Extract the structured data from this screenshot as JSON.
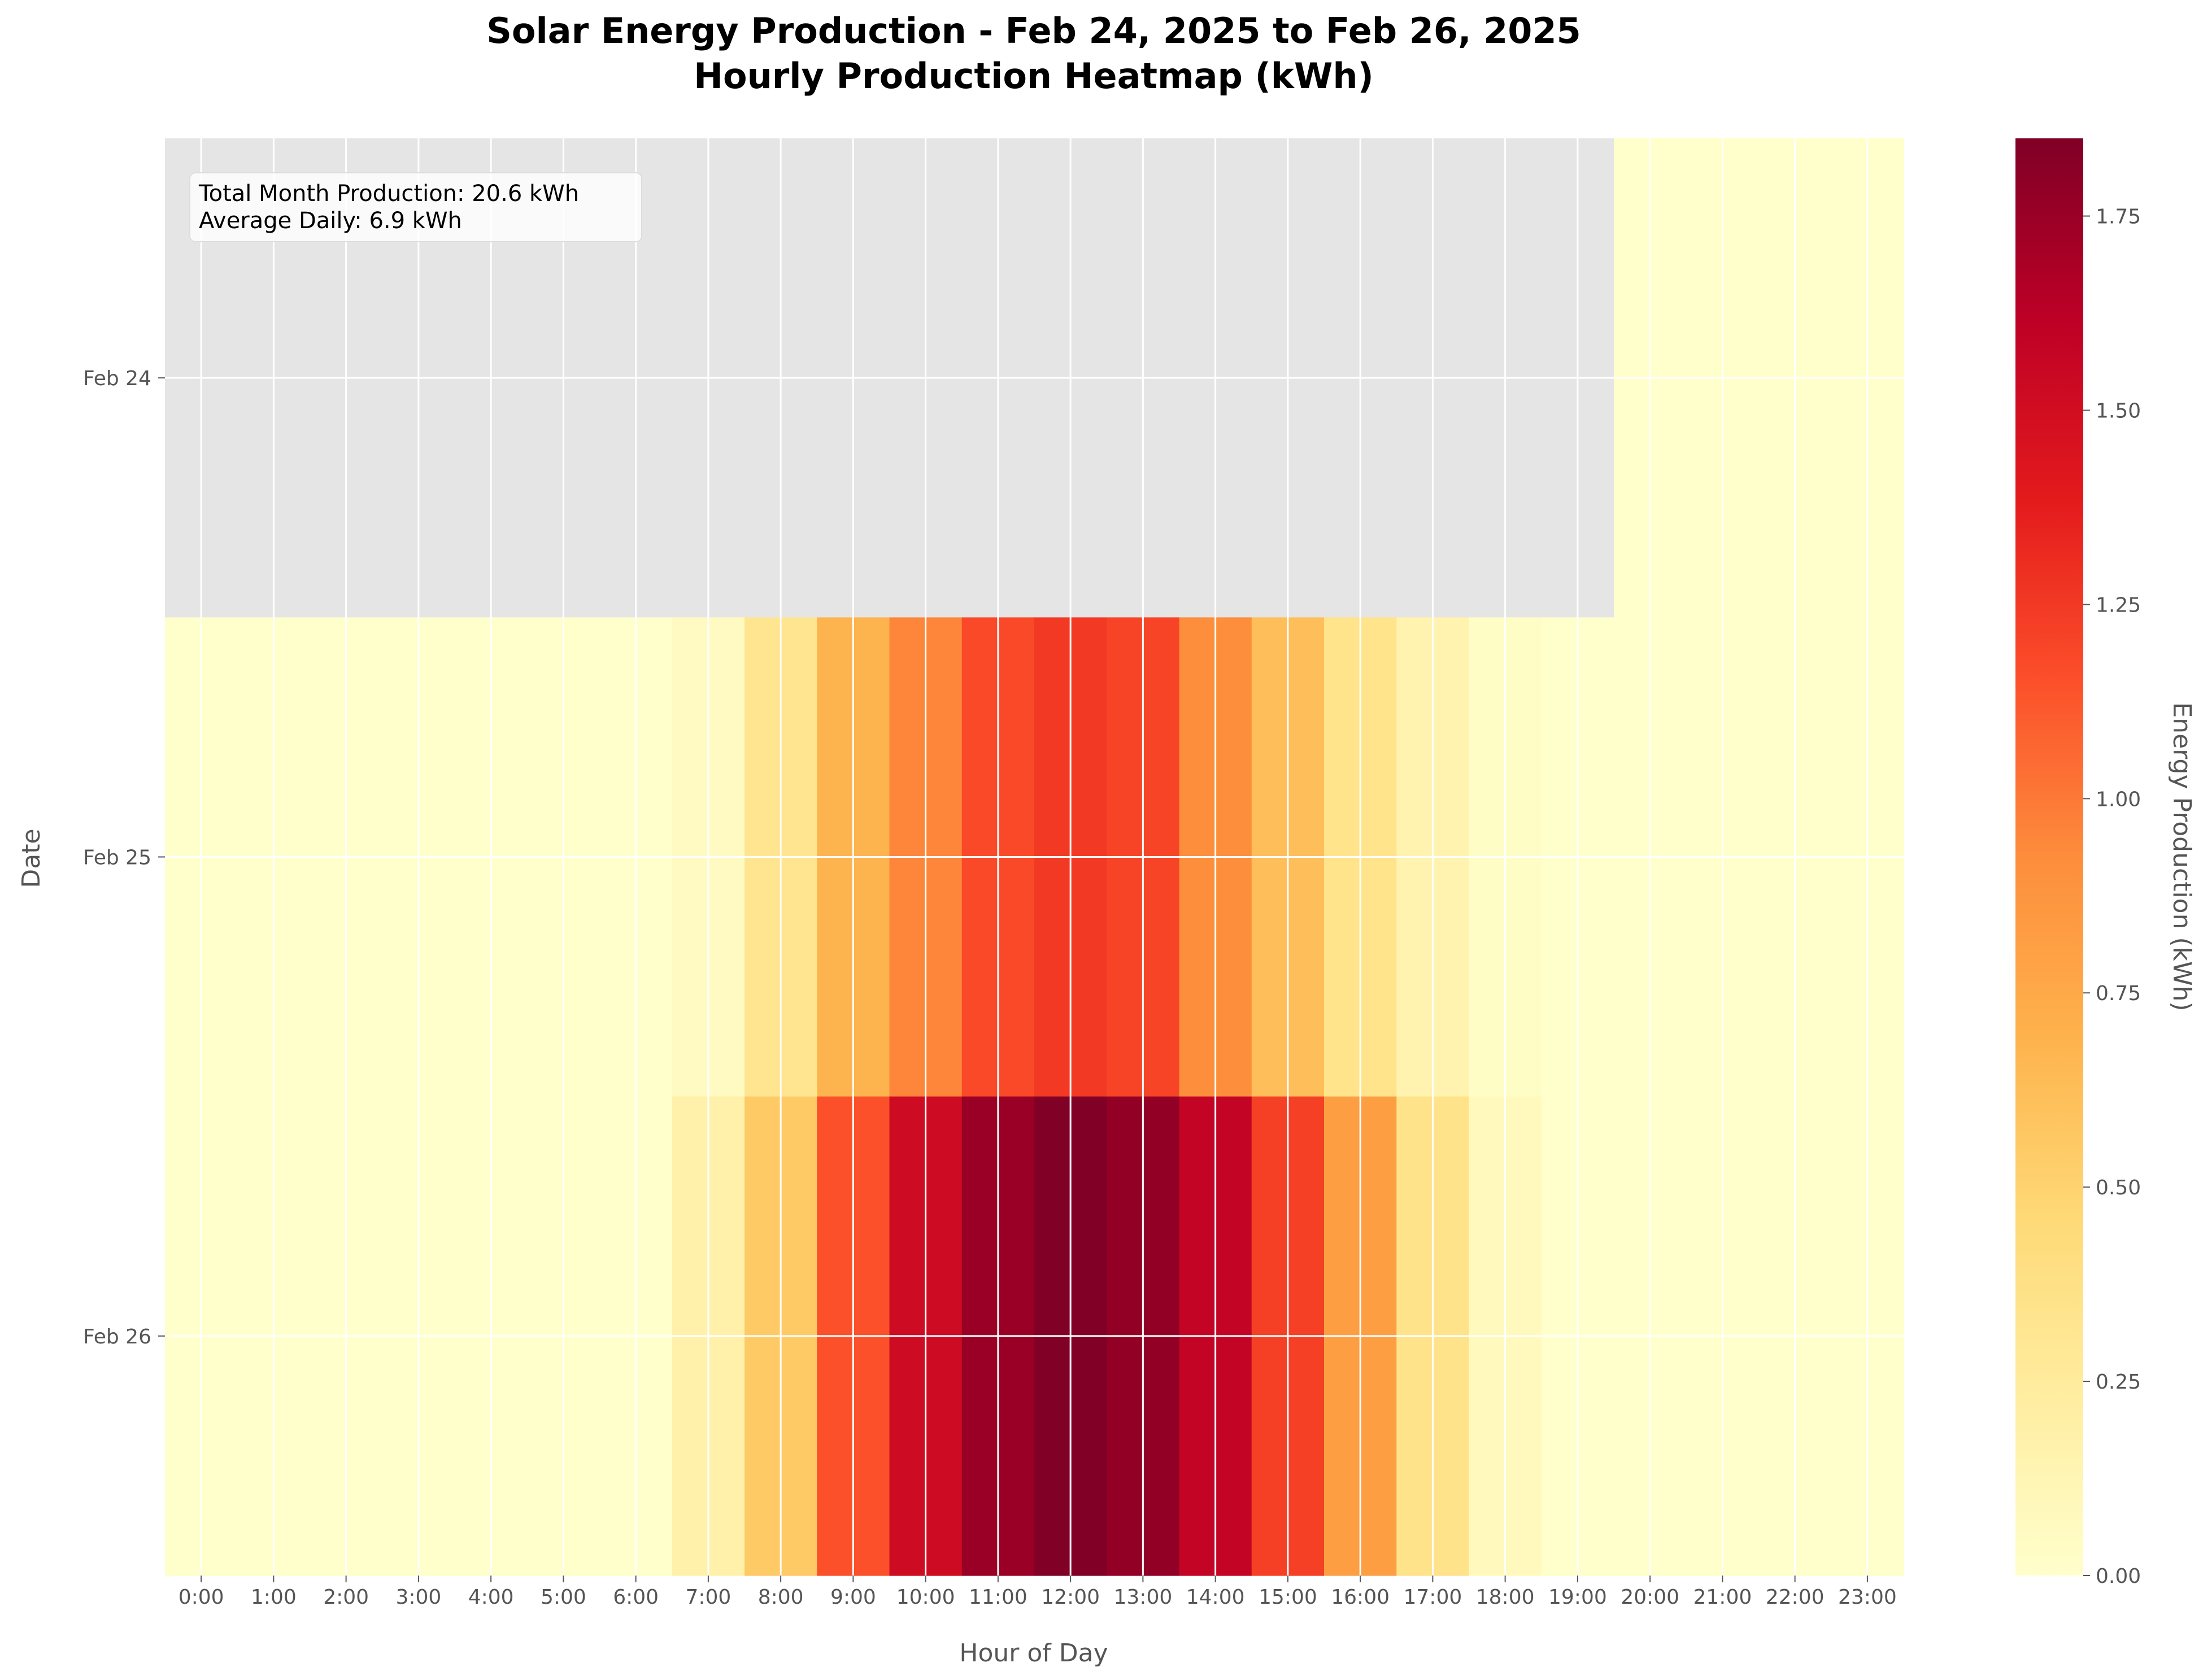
{
  "chart_data": {
    "type": "heatmap",
    "title": "Solar Energy Production - Feb 24, 2025 to Feb 26, 2025",
    "subtitle": "Hourly Production Heatmap (kWh)",
    "xlabel": "Hour of Day",
    "ylabel": "Date",
    "colorbar_label": "Energy Production (kWh)",
    "colormap": "YlOrRd",
    "missing_color": "#e5e5e5",
    "x": [
      "0:00",
      "1:00",
      "2:00",
      "3:00",
      "4:00",
      "5:00",
      "6:00",
      "7:00",
      "8:00",
      "9:00",
      "10:00",
      "11:00",
      "12:00",
      "13:00",
      "14:00",
      "15:00",
      "16:00",
      "17:00",
      "18:00",
      "19:00",
      "20:00",
      "21:00",
      "22:00",
      "23:00"
    ],
    "y": [
      "Feb 24",
      "Feb 25",
      "Feb 26"
    ],
    "values": [
      [
        null,
        null,
        null,
        null,
        null,
        null,
        null,
        null,
        null,
        null,
        null,
        null,
        null,
        null,
        null,
        null,
        null,
        null,
        null,
        null,
        0,
        0,
        0,
        0
      ],
      [
        0,
        0,
        0,
        0,
        0,
        0,
        0,
        0.06,
        0.32,
        0.68,
        0.95,
        1.18,
        1.25,
        1.2,
        0.92,
        0.62,
        0.34,
        0.15,
        0.03,
        0,
        0,
        0,
        0,
        0
      ],
      [
        0,
        0,
        0,
        0,
        0,
        0,
        0,
        0.18,
        0.55,
        1.15,
        1.52,
        1.75,
        1.85,
        1.78,
        1.58,
        1.22,
        0.82,
        0.35,
        0.08,
        0,
        0,
        0,
        0,
        0
      ]
    ],
    "colorbar_range": [
      0,
      1.85
    ],
    "colorbar_ticks": [
      "0.00",
      "0.25",
      "0.50",
      "0.75",
      "1.00",
      "1.25",
      "1.50",
      "1.75"
    ],
    "grid": true,
    "annotations": [
      "Total Month Production: 20.6 kWh",
      "Average Daily: 6.9 kWh"
    ]
  }
}
